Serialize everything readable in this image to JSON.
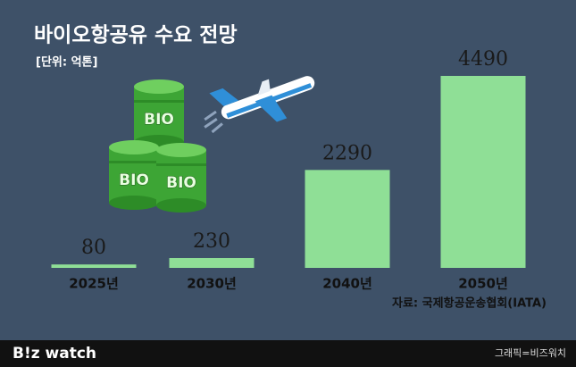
{
  "chart_data": {
    "type": "bar",
    "title": "바이오항공유 수요 전망",
    "subtitle": "[단위: 억톤]",
    "categories": [
      "2025년",
      "2030년",
      "2040년",
      "2050년"
    ],
    "values": [
      80,
      230,
      2290,
      4490
    ],
    "color": "#8fdf96",
    "source": "자료: 국제항공운송협회(IATA)"
  },
  "illustration": {
    "barrel_labels": [
      "BIO",
      "BIO",
      "BIO"
    ]
  },
  "footer": {
    "logo": "B!z watch",
    "credit": "그래픽=비즈워치"
  }
}
